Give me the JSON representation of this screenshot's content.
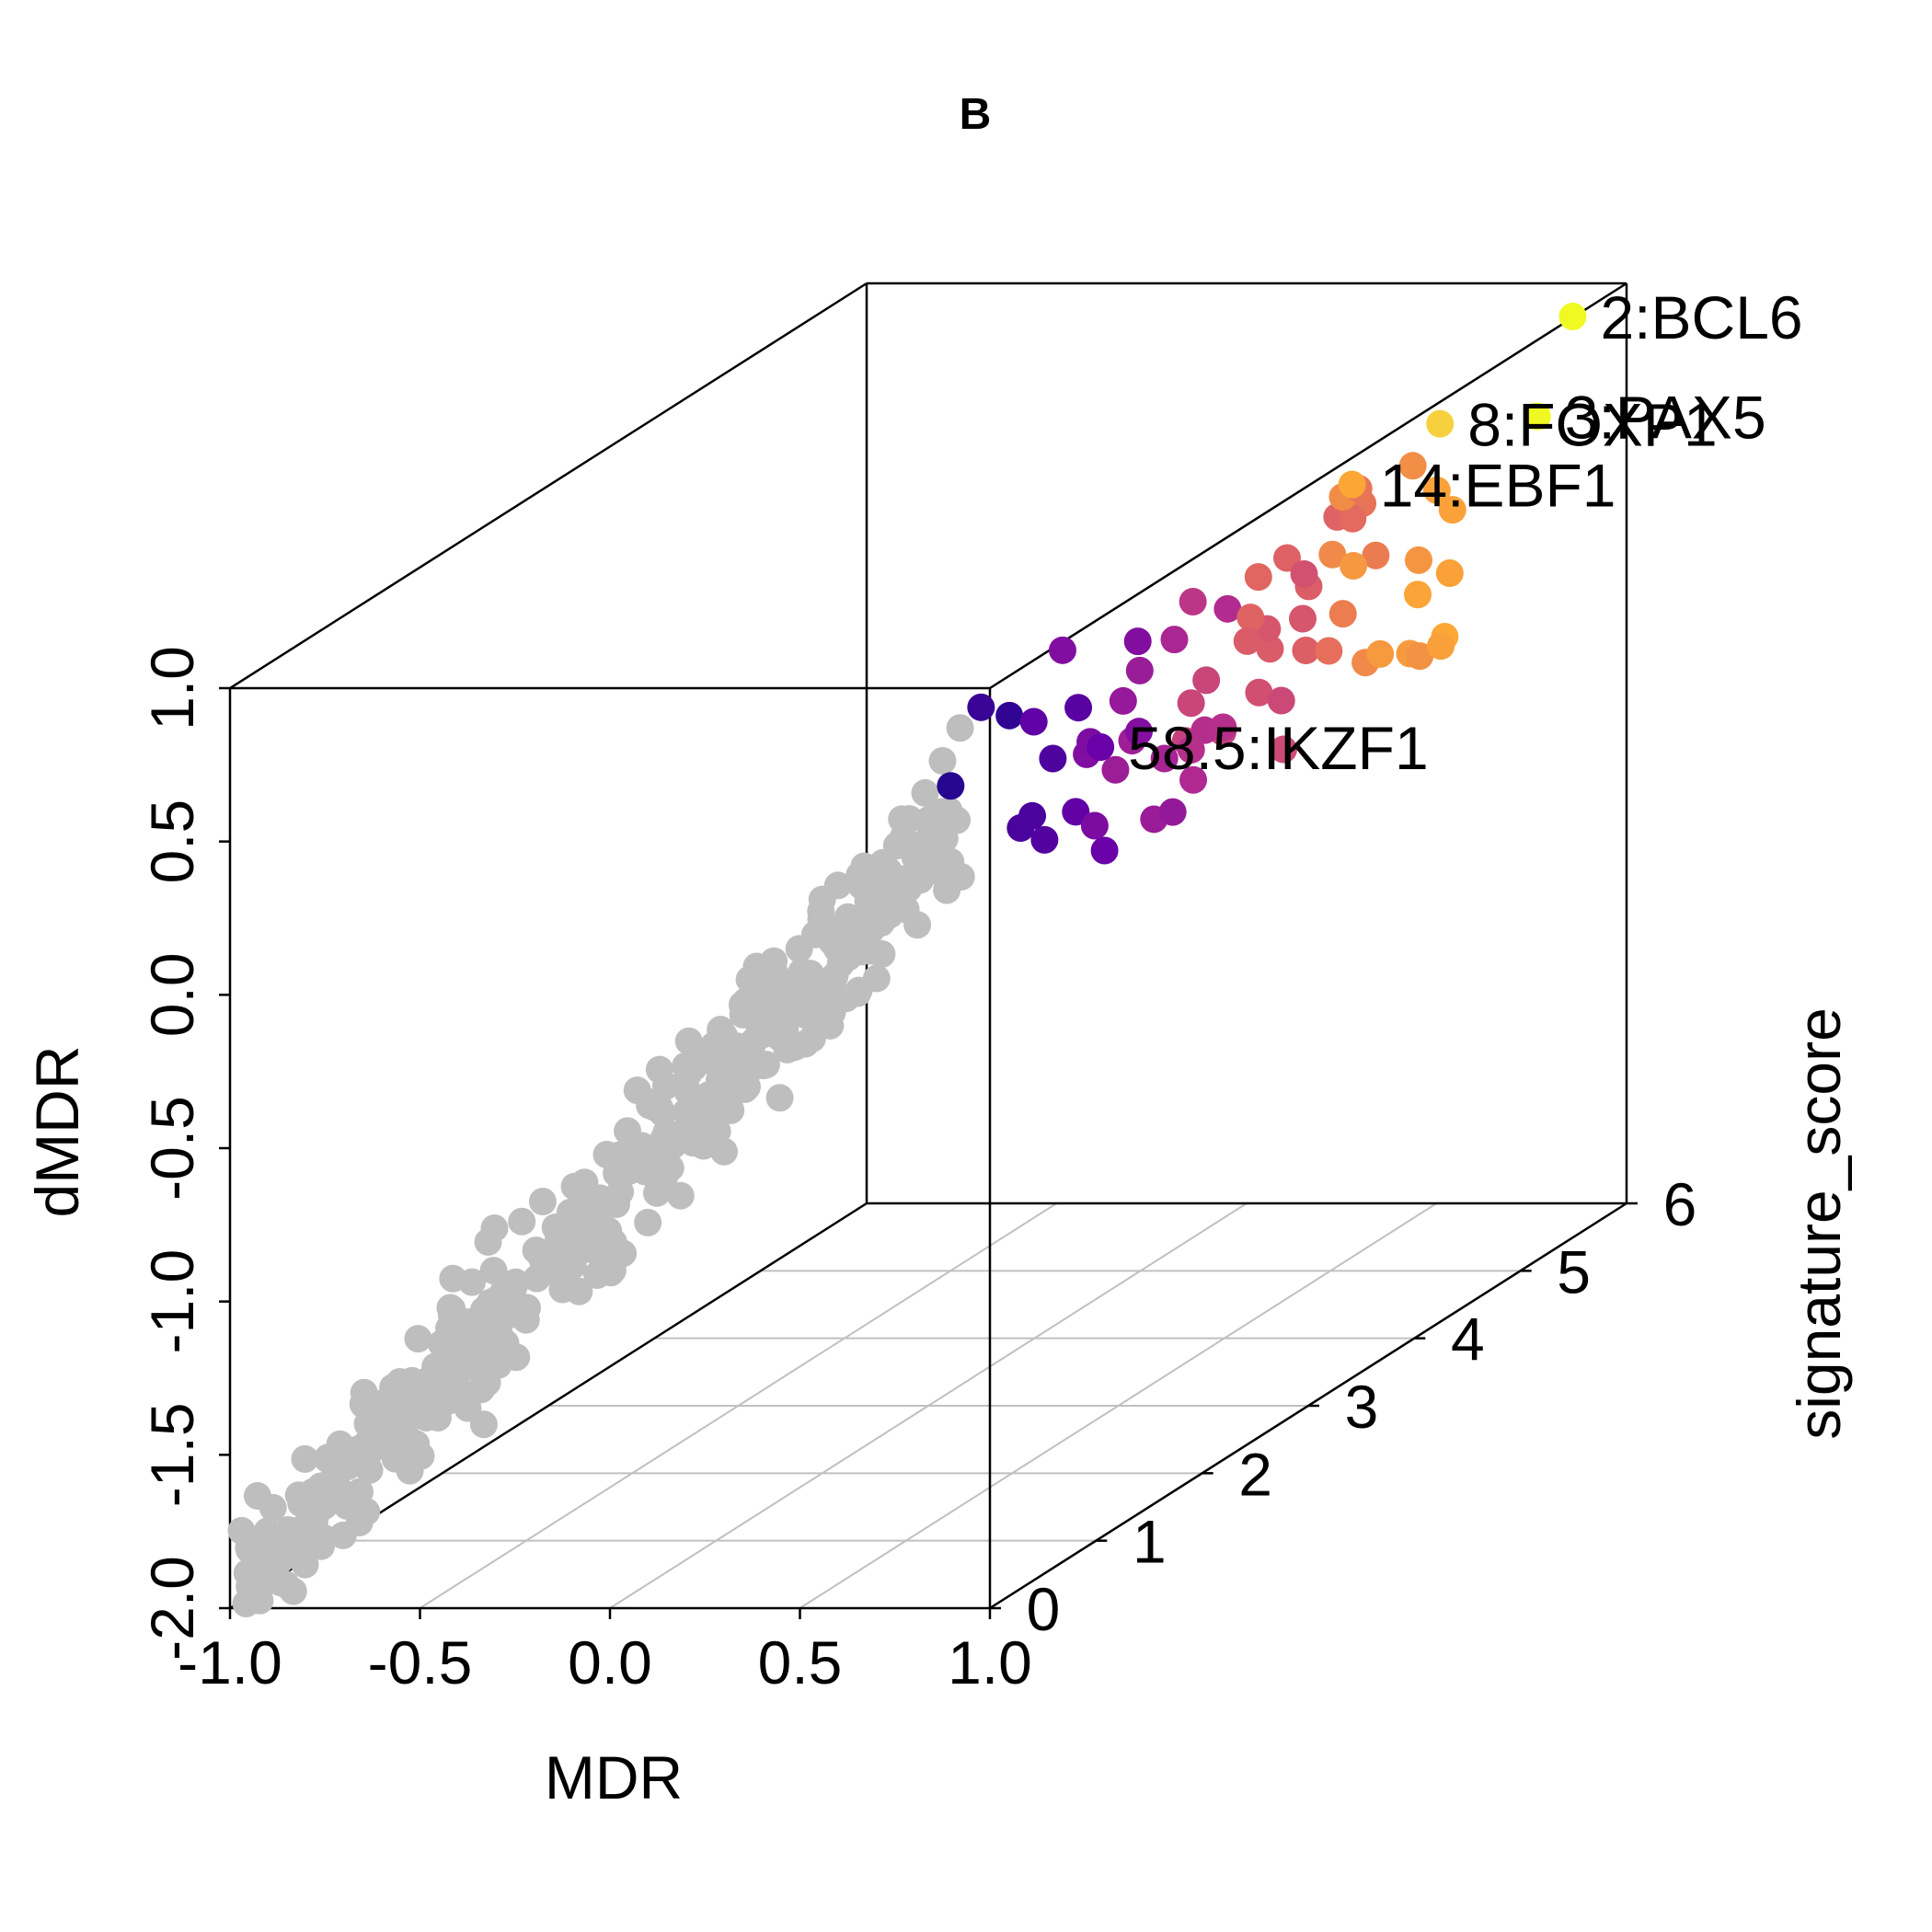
{
  "chart_data": {
    "type": "scatter3d",
    "title": "B",
    "xlabel": "MDR",
    "ylabel": "signature_score",
    "zlabel": "dMDR",
    "xlim": [
      -1.0,
      1.0
    ],
    "ylim": [
      0,
      6
    ],
    "zlim": [
      -2.0,
      1.0
    ],
    "xticks": [
      "-1.0",
      "-0.5",
      "0.0",
      "0.5",
      "1.0"
    ],
    "yticks": [
      "0",
      "1",
      "2",
      "3",
      "4",
      "5",
      "6"
    ],
    "zticks": [
      "-2.0",
      "-1.5",
      "-1.0",
      "-0.5",
      "0.0",
      "0.5",
      "1.0"
    ],
    "grid": true,
    "colors": {
      "background_genes": "#bebebe",
      "scale": [
        "#0d0887",
        "#6a00a8",
        "#b12a90",
        "#e16462",
        "#fca636",
        "#f0f921"
      ]
    },
    "labeled_points": [
      {
        "label": "2:BCL6",
        "x": 0.97,
        "y": 5.6,
        "z": 0.98,
        "color": "#f0f921"
      },
      {
        "label": "3:PAX5",
        "x": 0.96,
        "y": 5.3,
        "z": 0.72,
        "color": "#f0f921"
      },
      {
        "label": "8:FOXP1",
        "x": 0.9,
        "y": 4.6,
        "z": 0.85,
        "color": "#f7d13d"
      },
      {
        "label": "14:EBF1",
        "x": 0.92,
        "y": 3.7,
        "z": 0.85,
        "color": "#fca636"
      },
      {
        "label": "58.5:IKZF1",
        "x": 0.9,
        "y": 1.4,
        "z": 0.5,
        "color": "#6a00a8"
      }
    ]
  }
}
